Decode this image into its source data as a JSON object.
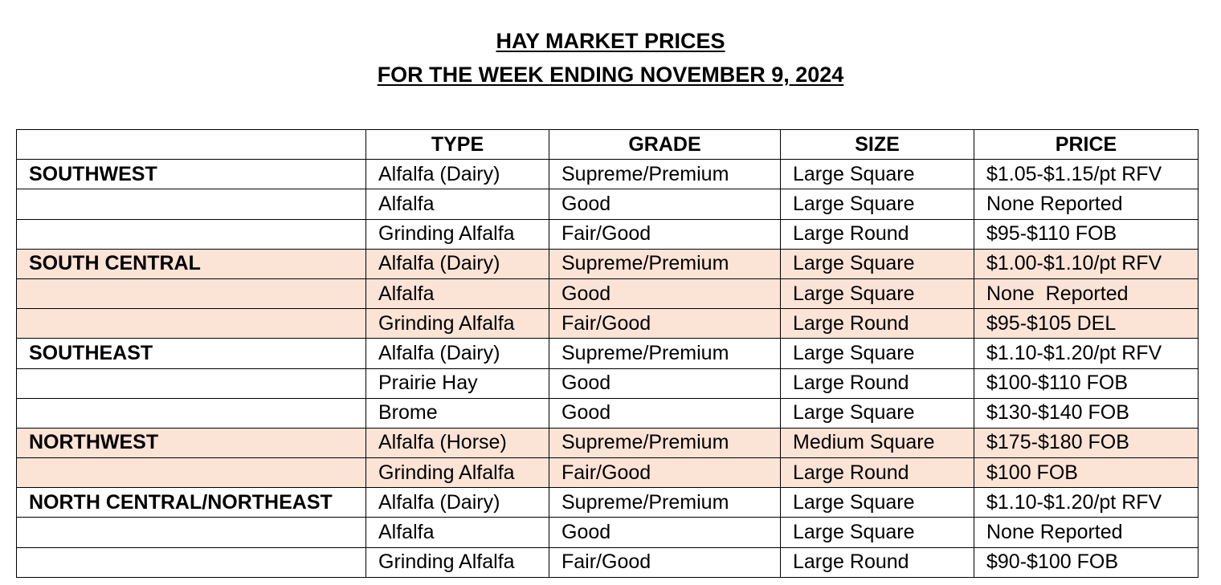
{
  "title": [
    "HAY MARKET PRICES",
    "FOR THE WEEK ENDING NOVEMBER 9, 2024"
  ],
  "table": {
    "header": [
      "TYPE",
      "GRADE",
      "SIZE",
      "PRICE"
    ],
    "groups": [
      {
        "region": "SOUTHWEST",
        "rows": [
          [
            "Alfalfa (Dairy)",
            "Supreme/Premium",
            "Large Square",
            "$1.05-$1.15/pt RFV"
          ],
          [
            "Alfalfa",
            "Good",
            "Large Square",
            "None Reported"
          ],
          [
            "Grinding Alfalfa",
            "Fair/Good",
            "Large Round",
            "$95-$110 FOB"
          ]
        ]
      },
      {
        "region": "SOUTH CENTRAL",
        "rows": [
          [
            "Alfalfa (Dairy)",
            "Supreme/Premium",
            "Large Square",
            "$1.00-$1.10/pt RFV"
          ],
          [
            "Alfalfa",
            "Good",
            "Large Square",
            "None  Reported"
          ],
          [
            "Grinding Alfalfa",
            "Fair/Good",
            "Large Round",
            "$95-$105 DEL"
          ]
        ]
      },
      {
        "region": "SOUTHEAST",
        "rows": [
          [
            "Alfalfa (Dairy)",
            "Supreme/Premium",
            "Large Square",
            "$1.10-$1.20/pt RFV"
          ],
          [
            "Prairie Hay",
            "Good",
            "Large Round",
            "$100-$110 FOB"
          ],
          [
            "Brome",
            "Good",
            "Large Square",
            "$130-$140 FOB"
          ]
        ]
      },
      {
        "region": "NORTHWEST",
        "rows": [
          [
            "Alfalfa (Horse)",
            "Supreme/Premium",
            "Medium Square",
            "$175-$180 FOB"
          ],
          [
            "Grinding Alfalfa",
            "Fair/Good",
            "Large Round",
            "$100 FOB"
          ]
        ]
      },
      {
        "region": "NORTH CENTRAL/NORTHEAST",
        "rows": [
          [
            "Alfalfa (Dairy)",
            "Supreme/Premium",
            "Large Square",
            "$1.10-$1.20/pt RFV"
          ],
          [
            "Alfalfa",
            "Good",
            "Large Square",
            "None Reported"
          ],
          [
            "Grinding Alfalfa",
            "Fair/Good",
            "Large Round",
            "$90-$100 FOB"
          ]
        ]
      }
    ]
  }
}
